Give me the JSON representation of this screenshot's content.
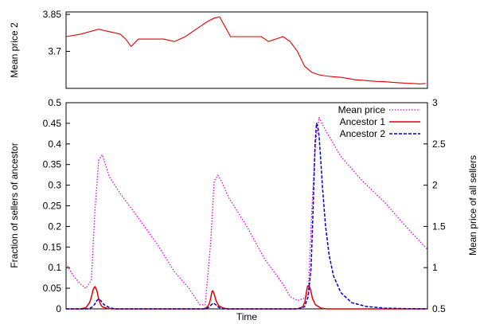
{
  "chart_data": [
    {
      "type": "line",
      "panel": "top",
      "title": "",
      "xlabel": "",
      "ylabel": "Mean price 2",
      "y_ticks": [
        3.7,
        3.85
      ],
      "ylim": [
        3.55,
        3.86
      ],
      "x_range": [
        0,
        1000
      ],
      "grid": false,
      "series": [
        {
          "color": "#e00000",
          "style": "solid",
          "x": [
            0,
            40,
            90,
            120,
            150,
            165,
            180,
            200,
            240,
            270,
            300,
            330,
            350,
            370,
            390,
            410,
            425,
            440,
            455,
            470,
            480,
            490,
            500,
            520,
            540,
            560,
            580,
            600,
            620,
            640,
            660,
            680,
            700,
            720,
            740,
            760,
            780,
            800,
            820,
            840,
            860,
            880,
            900,
            920,
            940,
            960,
            980,
            995
          ],
          "y": [
            3.76,
            3.77,
            3.79,
            3.78,
            3.77,
            3.75,
            3.72,
            3.75,
            3.75,
            3.75,
            3.74,
            3.76,
            3.78,
            3.8,
            3.82,
            3.835,
            3.84,
            3.8,
            3.76,
            3.76,
            3.76,
            3.76,
            3.76,
            3.76,
            3.76,
            3.74,
            3.75,
            3.76,
            3.74,
            3.7,
            3.64,
            3.615,
            3.605,
            3.6,
            3.597,
            3.595,
            3.59,
            3.585,
            3.583,
            3.58,
            3.578,
            3.577,
            3.575,
            3.573,
            3.571,
            3.57,
            3.568,
            3.57
          ]
        }
      ]
    },
    {
      "type": "line",
      "panel": "bottom",
      "title": "",
      "xlabel": "Time",
      "ylabel": "Fraction of sellers of ancestor",
      "y2label": "Mean price of all sellers",
      "ylim": [
        0,
        0.5
      ],
      "y_ticks": [
        0,
        0.05,
        0.1,
        0.15,
        0.2,
        0.25,
        0.3,
        0.35,
        0.4,
        0.45,
        0.5
      ],
      "y_tick_labels": [
        "0",
        "0.05",
        "0.1",
        "0.15",
        "0.2",
        "0.25",
        "0.3",
        "0.35",
        "0.4",
        "0.45",
        "0.5"
      ],
      "y2lim": [
        0.5,
        3
      ],
      "y2_ticks": [
        0.5,
        1,
        1.5,
        2,
        2.5,
        3
      ],
      "y2_tick_labels": [
        "0.5",
        "1",
        "1.5",
        "2",
        "2.5",
        "3"
      ],
      "x_range": [
        0,
        1000
      ],
      "grid": false,
      "legend_position": "top-right",
      "series": [
        {
          "name": "Mean price",
          "axis": "right",
          "color": "#e000e0",
          "style": "dotted",
          "x": [
            0,
            20,
            40,
            55,
            70,
            80,
            90,
            100,
            120,
            150,
            200,
            250,
            300,
            340,
            370,
            385,
            400,
            410,
            420,
            430,
            450,
            500,
            550,
            600,
            620,
            640,
            660,
            670,
            680,
            690,
            700,
            720,
            760,
            820,
            880,
            940,
            1000
          ],
          "y": [
            1.05,
            0.9,
            0.8,
            0.75,
            0.85,
            1.7,
            2.3,
            2.37,
            2.1,
            1.9,
            1.6,
            1.3,
            0.95,
            0.75,
            0.55,
            0.55,
            1.3,
            2.05,
            2.12,
            2.05,
            1.85,
            1.5,
            1.1,
            0.8,
            0.65,
            0.6,
            0.63,
            0.68,
            1.7,
            2.5,
            2.82,
            2.65,
            2.35,
            2.05,
            1.8,
            1.5,
            1.22
          ]
        },
        {
          "name": "Ancestor 1",
          "axis": "left",
          "color": "#e00000",
          "style": "solid",
          "x": [
            0,
            40,
            55,
            65,
            70,
            75,
            80,
            85,
            90,
            95,
            100,
            115,
            130,
            380,
            390,
            396,
            400,
            403,
            406,
            410,
            415,
            422,
            435,
            450,
            640,
            655,
            661,
            665,
            668,
            672,
            676,
            682,
            690,
            705,
            720,
            1000
          ],
          "y": [
            0,
            0,
            0.003,
            0.015,
            0.028,
            0.047,
            0.054,
            0.045,
            0.025,
            0.012,
            0.005,
            0.001,
            0,
            0,
            0.004,
            0.012,
            0.025,
            0.04,
            0.044,
            0.036,
            0.02,
            0.008,
            0.002,
            0,
            0,
            0.005,
            0.018,
            0.04,
            0.055,
            0.057,
            0.048,
            0.025,
            0.01,
            0.002,
            0,
            0
          ]
        },
        {
          "name": "Ancestor 2",
          "axis": "left",
          "color": "#0000d0",
          "style": "dashed",
          "x": [
            0,
            60,
            72,
            80,
            85,
            90,
            96,
            105,
            120,
            135,
            385,
            395,
            402,
            408,
            414,
            422,
            432,
            640,
            660,
            670,
            678,
            684,
            689,
            693,
            697,
            700,
            704,
            710,
            718,
            728,
            740,
            760,
            790,
            830,
            880,
            940,
            1000
          ],
          "y": [
            0,
            0,
            0.004,
            0.012,
            0.02,
            0.024,
            0.02,
            0.01,
            0.003,
            0,
            0,
            0.004,
            0.01,
            0.014,
            0.01,
            0.004,
            0,
            0,
            0.005,
            0.03,
            0.1,
            0.25,
            0.4,
            0.45,
            0.44,
            0.42,
            0.37,
            0.29,
            0.2,
            0.13,
            0.08,
            0.04,
            0.015,
            0.006,
            0.002,
            0.0005,
            0
          ]
        }
      ]
    }
  ]
}
